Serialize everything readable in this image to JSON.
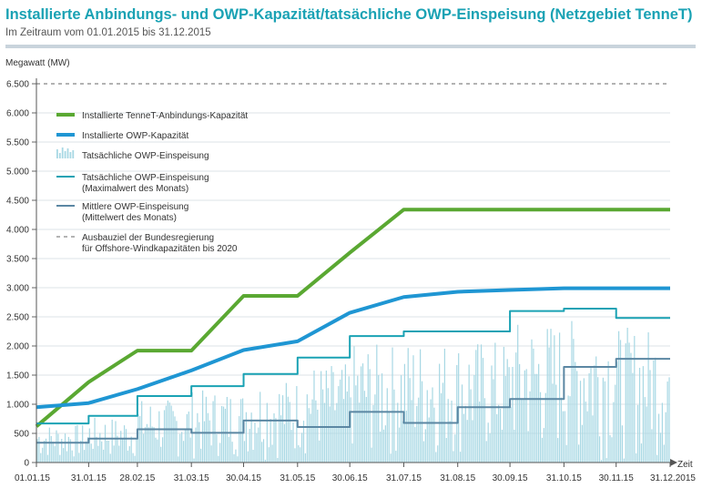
{
  "header": {
    "title": "Installierte Anbindungs- und OWP-Kapazität/tatsächliche OWP-Einspeisung (Netzgebiet TenneT)",
    "subtitle": "Im Zeitraum vom 01.01.2015 bis 31.12.2015"
  },
  "chart_data": {
    "type": "line",
    "ylabel": "Megawatt (MW)",
    "xlabel": "Zeit",
    "ylim": [
      0,
      6500
    ],
    "yticks": [
      0,
      500,
      1000,
      1500,
      2000,
      2500,
      3000,
      3500,
      4000,
      4500,
      5000,
      5500,
      6000,
      6500
    ],
    "ytick_labels": [
      "0",
      "500",
      "1.000",
      "1.500",
      "2.000",
      "2.500",
      "3.000",
      "3.500",
      "4.000",
      "4.500",
      "5.000",
      "5.500",
      "6.000",
      "6.500"
    ],
    "x_range_days": [
      0,
      364
    ],
    "xticks": [
      {
        "day": 0,
        "label": "01.01.15"
      },
      {
        "day": 30,
        "label": "31.01.15"
      },
      {
        "day": 58,
        "label": "28.02.15"
      },
      {
        "day": 89,
        "label": "31.03.15"
      },
      {
        "day": 119,
        "label": "30.04.15"
      },
      {
        "day": 150,
        "label": "31.05.15"
      },
      {
        "day": 180,
        "label": "30.06.15"
      },
      {
        "day": 211,
        "label": "31.07.15"
      },
      {
        "day": 242,
        "label": "31.08.15"
      },
      {
        "day": 272,
        "label": "30.09.15"
      },
      {
        "day": 303,
        "label": "31.10.15"
      },
      {
        "day": 333,
        "label": "30.11.15"
      },
      {
        "day": 364,
        "label": "31.12.2015"
      }
    ],
    "legend_position": "top-left",
    "series": [
      {
        "name": "Installierte TenneT-Anbindungs-Kapazität",
        "kind": "line",
        "color": "#5aa832",
        "x": [
          0,
          30,
          58,
          89,
          119,
          150,
          180,
          211,
          242,
          272,
          303,
          333,
          364
        ],
        "y": [
          620,
          1380,
          1920,
          1920,
          2860,
          2860,
          3600,
          4340,
          4340,
          4340,
          4340,
          4340,
          4340
        ]
      },
      {
        "name": "Installierte OWP-Kapazität",
        "kind": "line",
        "color": "#1f96d3",
        "x": [
          0,
          30,
          58,
          89,
          119,
          150,
          180,
          211,
          242,
          272,
          303,
          333,
          364
        ],
        "y": [
          950,
          1020,
          1260,
          1580,
          1930,
          2080,
          2570,
          2840,
          2930,
          2960,
          2990,
          2990,
          2990
        ]
      },
      {
        "name": "Tatsächliche OWP-Einspeisung",
        "kind": "bars",
        "color": "#a8d8e4",
        "monthly_max": [
          670,
          800,
          1140,
          1310,
          1520,
          1800,
          2170,
          2250,
          2250,
          2600,
          2640,
          2480
        ]
      },
      {
        "name": "Tatsächliche OWP-Einspeisung\n(Maximalwert des Monats)",
        "kind": "step",
        "color": "#1aa2b4",
        "x": [
          0,
          30,
          58,
          89,
          119,
          150,
          180,
          211,
          242,
          272,
          303,
          333,
          364
        ],
        "y": [
          670,
          800,
          1140,
          1310,
          1520,
          1800,
          2170,
          2250,
          2250,
          2600,
          2640,
          2480,
          2480
        ]
      },
      {
        "name": "Mittlere OWP-Einspeisung\n(Mittelwert des Monats)",
        "kind": "step",
        "color": "#5b87a3",
        "x": [
          0,
          30,
          58,
          89,
          119,
          150,
          180,
          211,
          242,
          272,
          303,
          333,
          364
        ],
        "y": [
          340,
          410,
          570,
          510,
          720,
          610,
          870,
          680,
          950,
          1090,
          1640,
          1780,
          1780
        ]
      },
      {
        "name": "Ausbauziel der Bundesregierung\nfür Offshore-Windkapazitäten bis 2020",
        "kind": "dashed",
        "color": "#9a9a9a",
        "x": [
          0,
          364
        ],
        "y": [
          6500,
          6500
        ]
      }
    ]
  }
}
